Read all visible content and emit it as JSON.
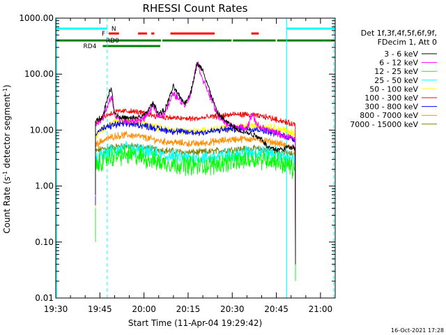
{
  "chart_data": {
    "type": "line",
    "title": "RHESSI Count Rates",
    "xlabel": "Start Time (11-Apr-04 19:29:42)",
    "ylabel_main": "Count Rate (s",
    "ylabel_sup1": "-1",
    "ylabel_mid": " detector segment",
    "ylabel_sup2": "-1",
    "ylabel_end": ")",
    "yscale": "log",
    "ylim": [
      0.01,
      1000
    ],
    "xlim_minutes": [
      0,
      95
    ],
    "x_ticks": [
      {
        "m": 0,
        "label": "19:30"
      },
      {
        "m": 15,
        "label": "19:45"
      },
      {
        "m": 30,
        "label": "20:00"
      },
      {
        "m": 45,
        "label": "20:15"
      },
      {
        "m": 60,
        "label": "20:30"
      },
      {
        "m": 75,
        "label": "20:45"
      },
      {
        "m": 90,
        "label": "21:00"
      }
    ],
    "y_ticks": [
      {
        "v": 0.01,
        "label": "0.01"
      },
      {
        "v": 0.1,
        "label": "0.10"
      },
      {
        "v": 1,
        "label": "1.00"
      },
      {
        "v": 10,
        "label": "10.00"
      },
      {
        "v": 100,
        "label": "100.00"
      },
      {
        "v": 1000,
        "label": "1000.00"
      }
    ],
    "legend_header": [
      "Det 1f,3f,4f,5f,6f,9f,",
      "FDecim 1, Att 0"
    ],
    "timestamp": "16-Oct-2021 17:28",
    "flags": {
      "N_label": "N",
      "F_label": "F",
      "RD0_label": "RD0",
      "RD4_label": "RD4",
      "night_segments": [
        [
          0,
          17.5
        ],
        [
          78.5,
          95
        ]
      ],
      "flare_segments": [
        [
          18,
          21.5
        ],
        [
          28,
          31
        ],
        [
          32.5,
          33.5
        ],
        [
          39,
          54
        ],
        [
          66.5,
          69
        ]
      ],
      "rd0_segments": [
        [
          0,
          36
        ],
        [
          36,
          60
        ],
        [
          60,
          75
        ],
        [
          75,
          95
        ]
      ],
      "rd4_segments": [
        [
          16,
          35.5
        ]
      ],
      "colors": {
        "night": "#00ffff",
        "flare": "#ff0000",
        "rd0": "#008000",
        "rd4": "#008000"
      }
    },
    "vlines_solid": [
      0.3,
      78.5
    ],
    "vlines_dashed": [
      17.5,
      95
    ],
    "data_start": 13.5,
    "data_end": 81.5,
    "series": [
      {
        "name": "3 - 6 keV",
        "color": "#000000",
        "x": [
          13.5,
          16,
          18,
          19,
          20,
          22,
          25,
          28,
          30,
          33,
          34,
          35,
          37,
          40,
          42,
          44,
          46,
          48,
          50,
          51,
          53,
          55,
          58,
          62,
          65,
          68,
          70,
          72,
          75,
          77,
          79,
          81.5
        ],
        "y": [
          14,
          18,
          45,
          55,
          20,
          17,
          16,
          17,
          18,
          30,
          25,
          20,
          22,
          60,
          40,
          30,
          50,
          150,
          120,
          80,
          40,
          20,
          14,
          10,
          9,
          8,
          7,
          5,
          4.5,
          4.5,
          5,
          5
        ]
      },
      {
        "name": "6 - 12 keV",
        "color": "#ff00ff",
        "x": [
          13.5,
          16,
          18,
          19,
          20,
          22,
          25,
          28,
          30,
          33,
          34,
          35,
          37,
          40,
          42,
          44,
          46,
          48,
          50,
          51,
          53,
          55,
          58,
          62,
          65,
          67,
          68,
          70,
          72,
          75,
          77,
          79,
          81.5
        ],
        "y": [
          13,
          16,
          30,
          40,
          18,
          15,
          14,
          15,
          16,
          26,
          22,
          18,
          20,
          45,
          35,
          28,
          45,
          170,
          80,
          60,
          35,
          18,
          13,
          11,
          11,
          20,
          13,
          11,
          10,
          9,
          8,
          7.5,
          7
        ]
      },
      {
        "name": "12 - 25 keV",
        "color": "#00ff00",
        "x": [
          13.5,
          15,
          17,
          20,
          24,
          28,
          32,
          36,
          40,
          44,
          48,
          52,
          56,
          60,
          64,
          68,
          72,
          76,
          80,
          81.5
        ],
        "y": [
          2.0,
          2.6,
          3.1,
          3.4,
          3.6,
          3.4,
          3.0,
          2.6,
          2.5,
          2.4,
          2.3,
          2.3,
          2.6,
          2.7,
          2.9,
          3.1,
          3.0,
          2.7,
          2.2,
          2.0
        ]
      },
      {
        "name": "25 - 50 keV",
        "color": "#00ffff",
        "x": [
          13.5,
          15,
          17,
          20,
          24,
          28,
          32,
          36,
          40,
          44,
          48,
          52,
          56,
          60,
          64,
          68,
          72,
          76,
          80,
          81.5
        ],
        "y": [
          2.6,
          3.2,
          3.9,
          4.3,
          4.6,
          4.3,
          3.9,
          3.5,
          3.3,
          3.2,
          3.1,
          3.2,
          3.4,
          3.6,
          3.9,
          4.1,
          4.0,
          3.6,
          3.0,
          2.8
        ]
      },
      {
        "name": "50 - 100 keV",
        "color": "#ffff00",
        "x": [
          13.5,
          16,
          18,
          20,
          24,
          28,
          32,
          36,
          40,
          44,
          48,
          52,
          56,
          60,
          64,
          68,
          72,
          76,
          80,
          81.5
        ],
        "y": [
          8,
          10,
          12,
          14,
          15,
          14,
          12,
          10.5,
          10,
          9.5,
          9.5,
          10,
          10.5,
          11,
          11.5,
          12,
          11.5,
          10.5,
          9,
          8.5
        ]
      },
      {
        "name": "100 - 300 keV",
        "color": "#ff0000",
        "x": [
          13.5,
          16,
          18,
          20,
          24,
          28,
          32,
          36,
          40,
          44,
          48,
          52,
          56,
          60,
          64,
          68,
          72,
          76,
          80,
          81.5
        ],
        "y": [
          14,
          17,
          19,
          21,
          22,
          21,
          19,
          17,
          16.5,
          16,
          16,
          17,
          18,
          19,
          19,
          18,
          17,
          15,
          13,
          12.5
        ]
      },
      {
        "name": "300 - 800 keV",
        "color": "#0000ff",
        "x": [
          13.5,
          16,
          18,
          20,
          24,
          28,
          32,
          36,
          40,
          44,
          48,
          52,
          56,
          60,
          64,
          68,
          72,
          76,
          80,
          81.5
        ],
        "y": [
          9,
          10.5,
          11.5,
          12.5,
          13,
          12.5,
          11.5,
          10.2,
          9.6,
          9.2,
          9.0,
          9.4,
          10,
          10.5,
          10.8,
          10.5,
          9.6,
          8.4,
          7.2,
          6.8
        ]
      },
      {
        "name": "800 - 7000 keV",
        "color": "#ff8c00",
        "x": [
          13.5,
          16,
          18,
          20,
          24,
          28,
          32,
          36,
          40,
          44,
          48,
          52,
          56,
          60,
          64,
          68,
          72,
          76,
          80,
          81.5
        ],
        "y": [
          5.5,
          6.5,
          7.2,
          7.8,
          8.2,
          7.8,
          7.0,
          6.3,
          6.0,
          5.8,
          5.7,
          6.0,
          6.4,
          6.8,
          7.0,
          6.9,
          6.4,
          5.7,
          5.0,
          4.6
        ]
      },
      {
        "name": "7000 - 15000 keV",
        "color": "#808000",
        "x": [
          13.5,
          16,
          20,
          24,
          28,
          32,
          36,
          40,
          44,
          48,
          52,
          56,
          60,
          64,
          68,
          72,
          76,
          80,
          81.5
        ],
        "y": [
          4.2,
          4.6,
          5.0,
          5.2,
          5.0,
          4.7,
          4.4,
          4.2,
          4.0,
          4.0,
          4.1,
          4.3,
          4.5,
          4.6,
          4.6,
          4.4,
          4.1,
          3.7,
          3.5
        ]
      }
    ]
  }
}
